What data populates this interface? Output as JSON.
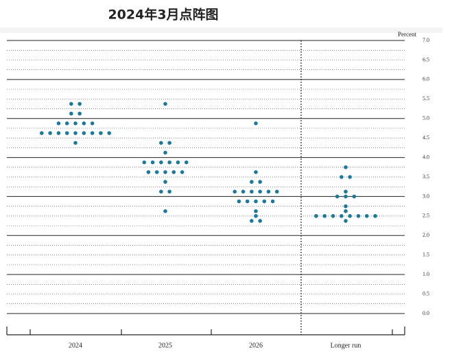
{
  "chart_data": {
    "type": "dot",
    "title": "2024年3月点阵图",
    "y_unit_label": "Percent",
    "color": "#1b7a9c",
    "categories": [
      "2024",
      "2025",
      "2026",
      "Longer run"
    ],
    "dots": [
      [
        {
          "value": 5.375,
          "count": 2
        },
        {
          "value": 5.125,
          "count": 2
        },
        {
          "value": 4.875,
          "count": 5
        },
        {
          "value": 4.625,
          "count": 9
        },
        {
          "value": 4.375,
          "count": 1
        }
      ],
      [
        {
          "value": 5.375,
          "count": 1
        },
        {
          "value": 4.375,
          "count": 2
        },
        {
          "value": 4.125,
          "count": 1
        },
        {
          "value": 3.875,
          "count": 6
        },
        {
          "value": 3.625,
          "count": 5
        },
        {
          "value": 3.375,
          "count": 1
        },
        {
          "value": 3.125,
          "count": 2
        },
        {
          "value": 2.625,
          "count": 1
        }
      ],
      [
        {
          "value": 4.875,
          "count": 1
        },
        {
          "value": 3.625,
          "count": 1
        },
        {
          "value": 3.375,
          "count": 2
        },
        {
          "value": 3.125,
          "count": 6
        },
        {
          "value": 2.875,
          "count": 5
        },
        {
          "value": 2.625,
          "count": 1
        },
        {
          "value": 2.5,
          "count": 1
        },
        {
          "value": 2.375,
          "count": 2
        }
      ],
      [
        {
          "value": 3.75,
          "count": 1
        },
        {
          "value": 3.5,
          "count": 2
        },
        {
          "value": 3.125,
          "count": 1
        },
        {
          "value": 3.0,
          "count": 3
        },
        {
          "value": 2.75,
          "count": 1
        },
        {
          "value": 2.625,
          "count": 1
        },
        {
          "value": 2.5,
          "count": 8
        },
        {
          "value": 2.375,
          "count": 1
        }
      ]
    ],
    "ylim": [
      0,
      7
    ],
    "yticks": [
      {
        "value": 0,
        "label": "0.0"
      },
      {
        "value": 0.5,
        "label": "0.5"
      },
      {
        "value": 1,
        "label": "1.0"
      },
      {
        "value": 1.5,
        "label": "1.5"
      },
      {
        "value": 2,
        "label": "2.0"
      },
      {
        "value": 2.5,
        "label": "2.5"
      },
      {
        "value": 3,
        "label": "3.0"
      },
      {
        "value": 3.5,
        "label": "3.5"
      },
      {
        "value": 4,
        "label": "4.0"
      },
      {
        "value": 4.5,
        "label": "4.5"
      },
      {
        "value": 5,
        "label": "5.0"
      },
      {
        "value": 5.5,
        "label": "5.5"
      },
      {
        "value": 6,
        "label": "6.0"
      },
      {
        "value": 6.5,
        "label": "6.5"
      },
      {
        "value": 7,
        "label": "7.0"
      }
    ],
    "minor_yticks": [
      0.25,
      0.75,
      1.25,
      1.75,
      2.25,
      2.75,
      3.25,
      3.75,
      4.25,
      4.75,
      5.25,
      5.75,
      6.25,
      6.75
    ],
    "grid": true
  }
}
